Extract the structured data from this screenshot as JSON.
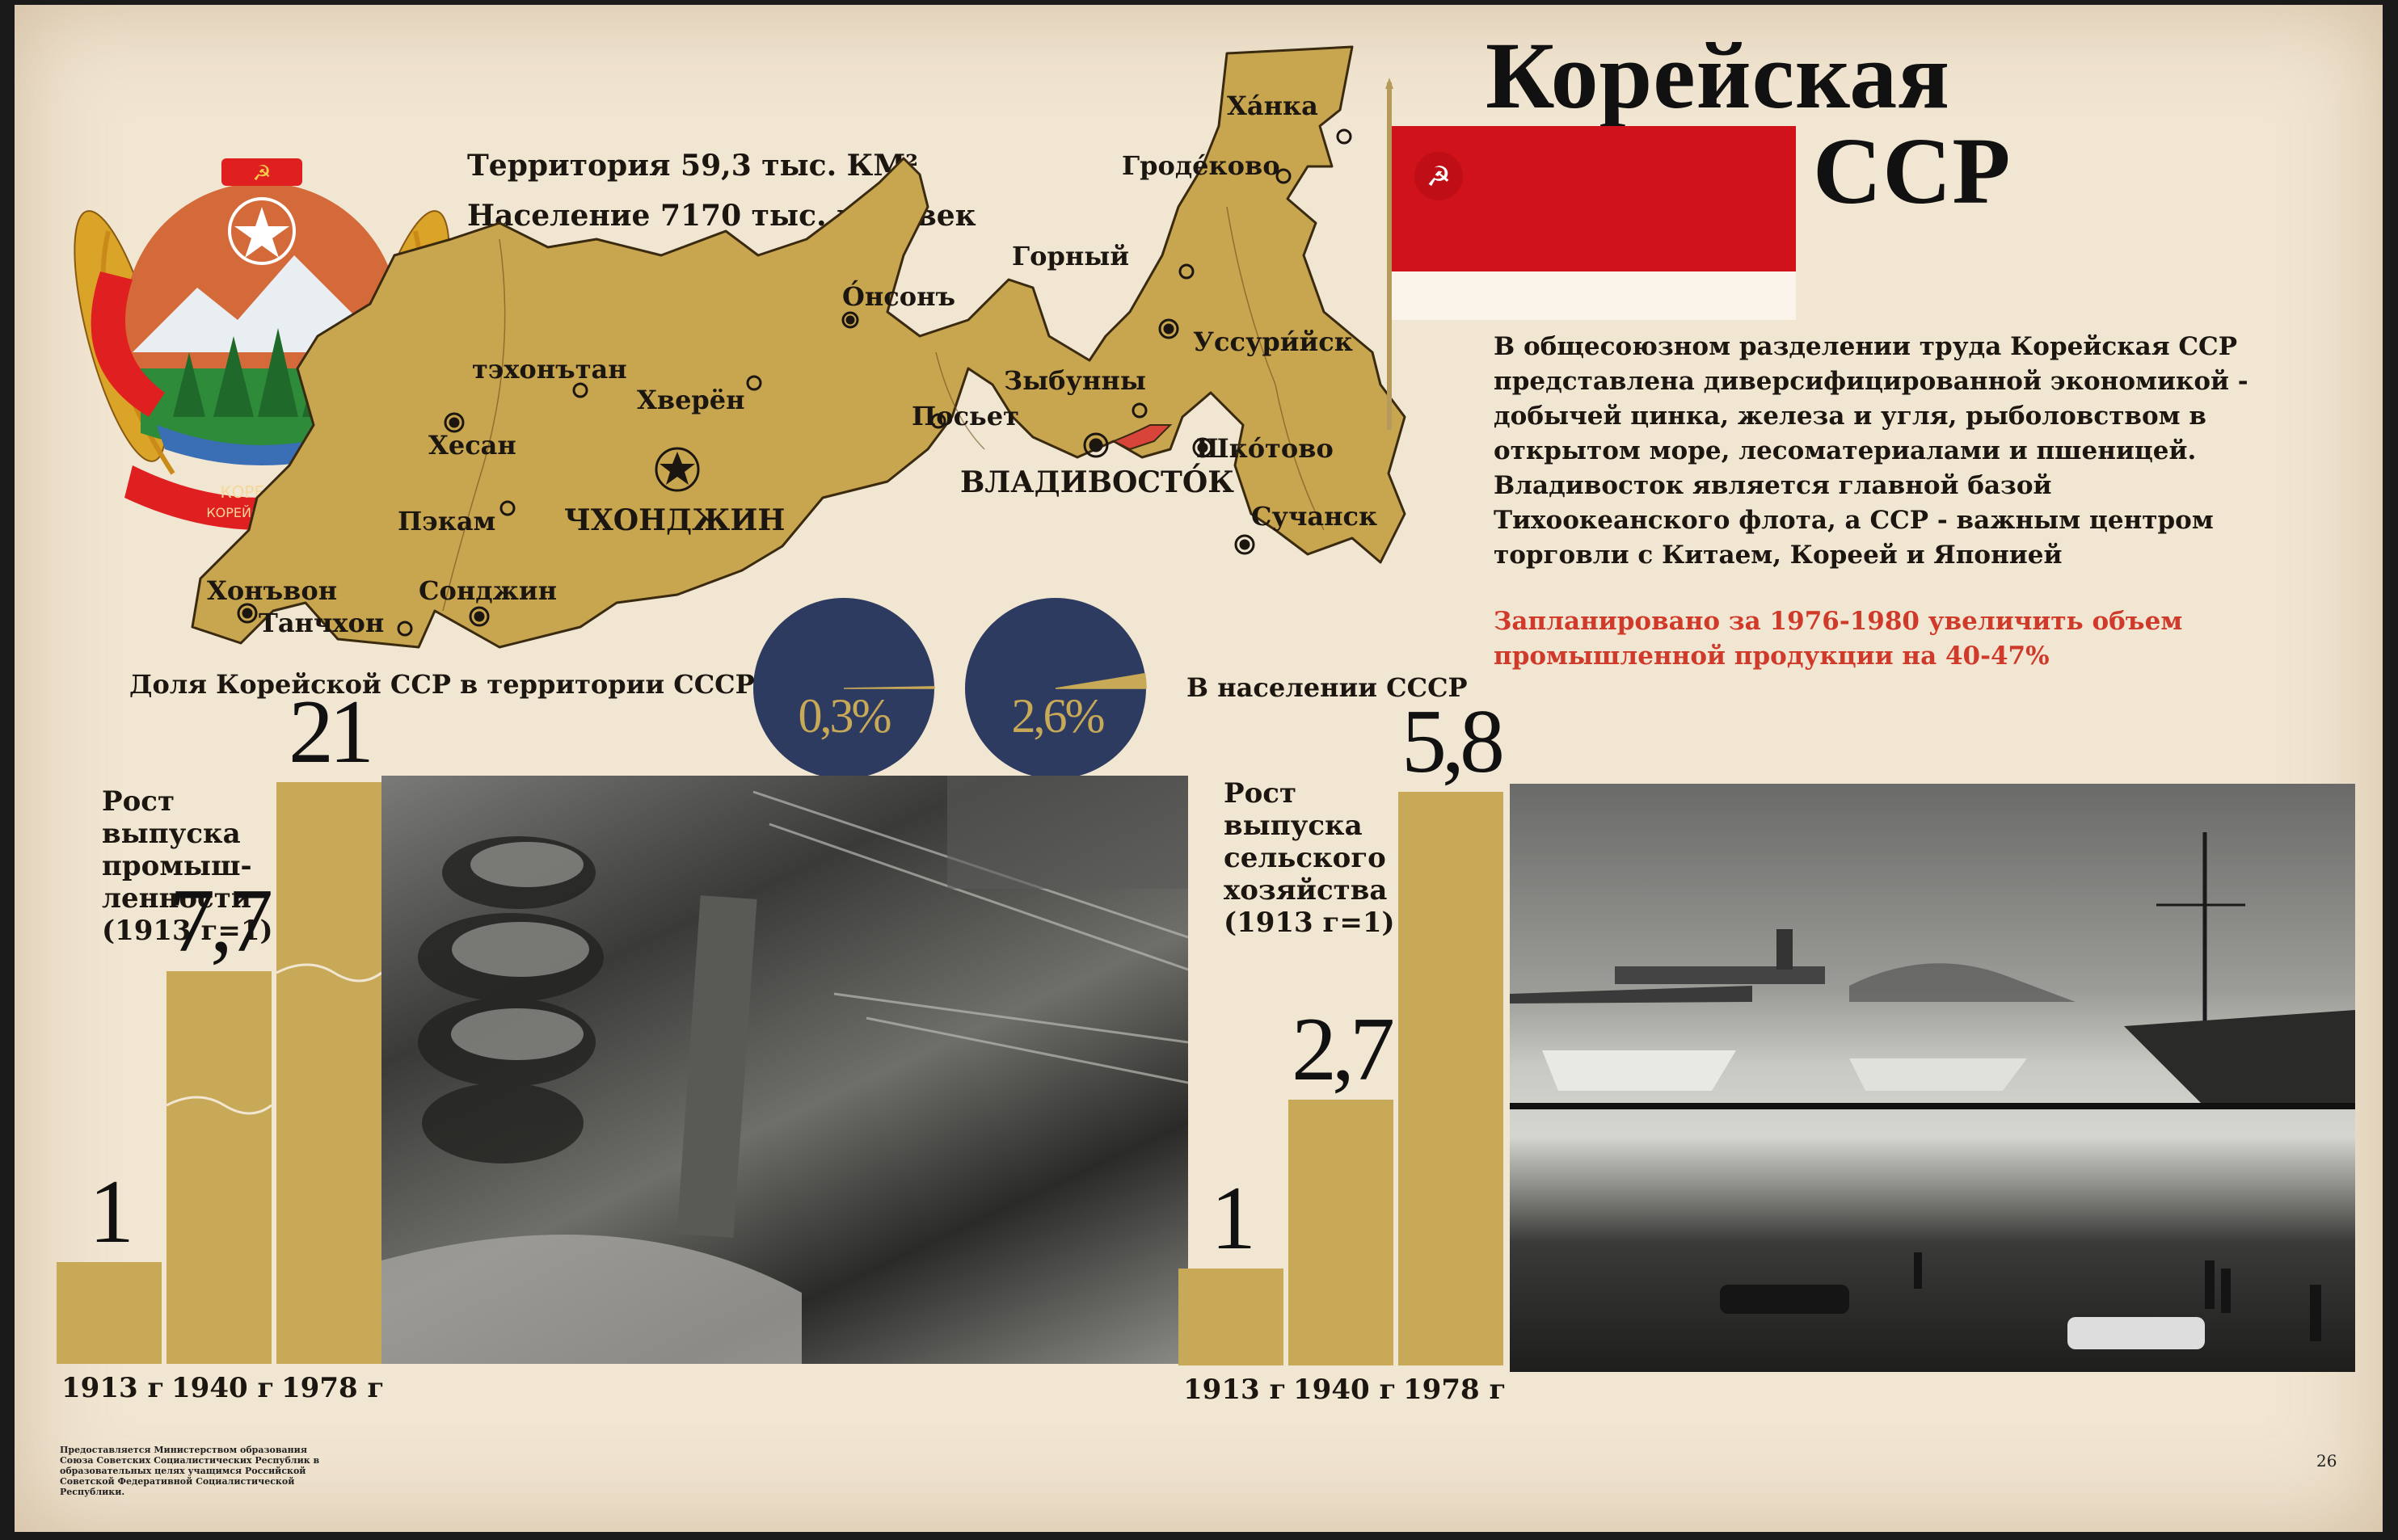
{
  "title": {
    "line1": "Корейская",
    "line2": "ССР"
  },
  "stats": {
    "territory": "Территория 59,3  тыс. КМ²",
    "population": "Население 7170  тыс. человек"
  },
  "description": "В общесоюзном разделении труда Корейская ССР представлена диверсифицированной экономикой - добычей цинка, железа и угля, рыболовством в открытом море, лесоматериалами и пшеницей. Владивосток является главной базой Тихоокеанского флота, а ССР - важным центром торговли с Китаем, Кореей и Японией",
  "plan": "Запланировано за 1976-1980 увеличить объем промышленной продукции на 40-47%",
  "emblem": {
    "ribbon_text_1": "КОРЕ ССК",
    "ribbon_text_2": "КОРЕЙСКАЯ ССР"
  },
  "map": {
    "cities": [
      {
        "name": "Ха́нка"
      },
      {
        "name": "Гроде́ково"
      },
      {
        "name": "Горный"
      },
      {
        "name": "О́нсонъ"
      },
      {
        "name": "Уссури́йск"
      },
      {
        "name": "Зыбунны"
      },
      {
        "name": "тэхонътан"
      },
      {
        "name": "Хверён"
      },
      {
        "name": "Хесан"
      },
      {
        "name": "Посьет"
      },
      {
        "name": "Шко́тово"
      },
      {
        "name": "ВЛАДИВОСТО́К"
      },
      {
        "name": "ЧХОНДЖИН"
      },
      {
        "name": "Пэкам"
      },
      {
        "name": "Сучанск"
      },
      {
        "name": "Хонъвон"
      },
      {
        "name": "Сонджин"
      },
      {
        "name": "Танчхон"
      }
    ]
  },
  "pies": {
    "territory": {
      "label": "Доля Корейской  ССР в территории СССР",
      "value_text": "0,3%",
      "fraction": 0.003
    },
    "population": {
      "label": "В населении СССР",
      "value_text": "2,6%",
      "fraction": 0.026
    }
  },
  "colors": {
    "bar": "#c8a957",
    "pie": "#2e3b61",
    "flag_red": "#d0121b",
    "plan_red": "#d03a2a"
  },
  "chart_data": [
    {
      "type": "bar",
      "title": "Рост выпуска промышленности (1913 г=1)",
      "title_lines": [
        "Рост",
        "выпуска",
        "промыш-",
        "ленности",
        "(1913 г=1)"
      ],
      "categories": [
        "1913 г",
        "1940 г",
        "1978 г"
      ],
      "values": [
        1,
        7.7,
        21
      ],
      "value_labels": [
        "1",
        "7,7",
        "21"
      ],
      "scale_break": true
    },
    {
      "type": "bar",
      "title": "Рост выпуска сельского хозяйства (1913 г=1)",
      "title_lines": [
        "Рост",
        "выпуска",
        "сельского",
        "хозяйства",
        "(1913 г=1)"
      ],
      "categories": [
        "1913 г",
        "1940 г",
        "1978 г"
      ],
      "values": [
        1,
        2.7,
        5.8
      ],
      "value_labels": [
        "1",
        "2,7",
        "5,8"
      ],
      "scale_break": false
    }
  ],
  "footnote": "Предоставляется Министерством образования Союза Советских Социалистических Республик в образовательных целях учащимся Российской Советской Федеративной Социалистической Республики.",
  "page_number": "26"
}
